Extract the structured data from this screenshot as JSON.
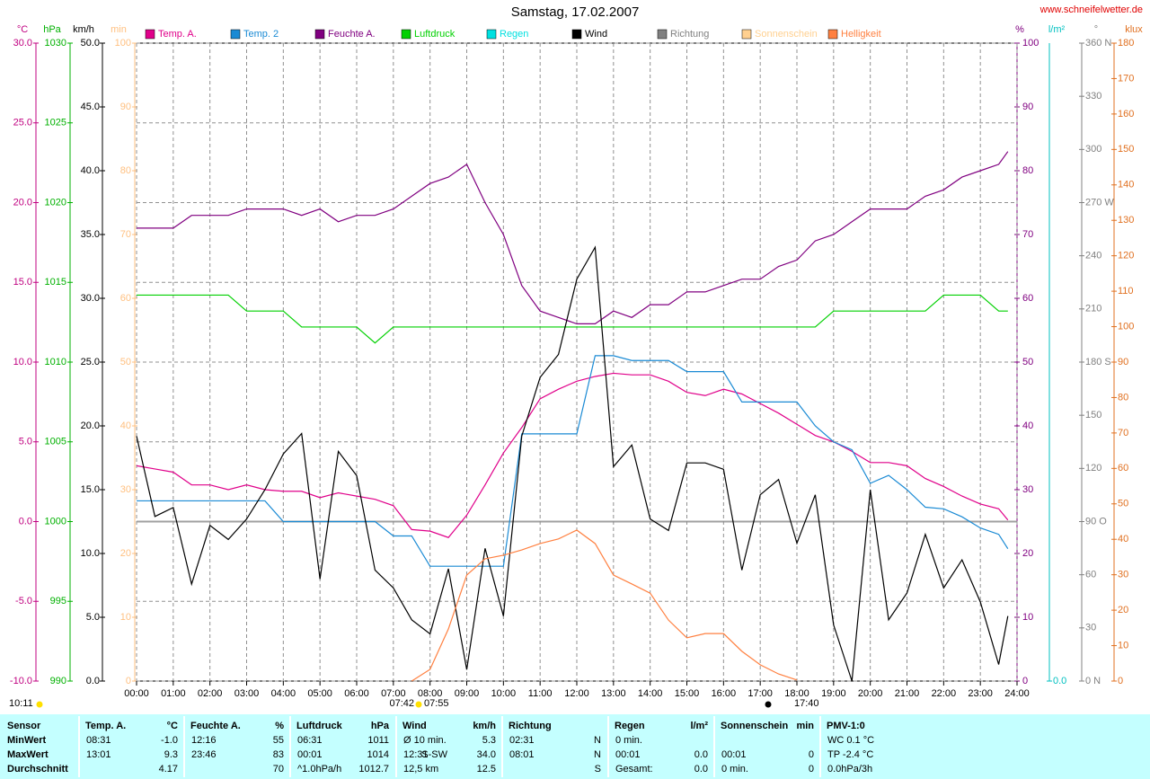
{
  "header": {
    "title": "Samstag, 17.02.2007",
    "site": "www.schneifelwetter.de",
    "time": "10:11",
    "sunrise": [
      "07:42",
      "07:55"
    ],
    "sunset": "17:40"
  },
  "chart_data": {
    "type": "line",
    "xlim": [
      0,
      24
    ],
    "xticks": [
      {
        "value": 0,
        "label": "00:00"
      },
      {
        "value": 1,
        "label": "01:00"
      },
      {
        "value": 2,
        "label": "02:00"
      },
      {
        "value": 3,
        "label": "03:00"
      },
      {
        "value": 4,
        "label": "04:00"
      },
      {
        "value": 5,
        "label": "05:00"
      },
      {
        "value": 6,
        "label": "06:00"
      },
      {
        "value": 7,
        "label": "07:00"
      },
      {
        "value": 8,
        "label": "08:00"
      },
      {
        "value": 9,
        "label": "09:00"
      },
      {
        "value": 10,
        "label": "10:00"
      },
      {
        "value": 11,
        "label": "11:00"
      },
      {
        "value": 12,
        "label": "12:00"
      },
      {
        "value": 13,
        "label": "13:00"
      },
      {
        "value": 14,
        "label": "14:00"
      },
      {
        "value": 15,
        "label": "15:00"
      },
      {
        "value": 16,
        "label": "16:00"
      },
      {
        "value": 17,
        "label": "17:00"
      },
      {
        "value": 18,
        "label": "18:00"
      },
      {
        "value": 19,
        "label": "19:00"
      },
      {
        "value": 20,
        "label": "20:00"
      },
      {
        "value": 21,
        "label": "21:00"
      },
      {
        "value": 22,
        "label": "22:00"
      },
      {
        "value": 23,
        "label": "23:00"
      },
      {
        "value": 24,
        "label": "24:00"
      }
    ],
    "grid": true,
    "axes": [
      {
        "title": "°C",
        "color": "#c00080",
        "lim": [
          -10,
          30
        ],
        "ticks": [
          {
            "value": -10,
            "label": "-10.0"
          },
          {
            "value": -5,
            "label": "-5.0"
          },
          {
            "value": 0,
            "label": "0.0"
          },
          {
            "value": 5,
            "label": "5.0"
          },
          {
            "value": 10,
            "label": "10.0"
          },
          {
            "value": 15,
            "label": "15.0"
          },
          {
            "value": 20,
            "label": "20.0"
          },
          {
            "value": 25,
            "label": "25.0"
          },
          {
            "value": 30,
            "label": "30.0"
          }
        ]
      },
      {
        "title": "hPa",
        "color": "#00b000",
        "lim": [
          990,
          1030
        ],
        "ticks": [
          990,
          995,
          1000,
          1005,
          1010,
          1015,
          1020,
          1025,
          1030
        ]
      },
      {
        "title": "km/h",
        "color": "#000000",
        "lim": [
          0,
          50
        ],
        "ticks": [
          {
            "value": 0,
            "label": "0.0"
          },
          {
            "value": 5,
            "label": "5.0"
          },
          {
            "value": 10,
            "label": "10.0"
          },
          {
            "value": 15,
            "label": "15.0"
          },
          {
            "value": 20,
            "label": "20.0"
          },
          {
            "value": 25,
            "label": "25.0"
          },
          {
            "value": 30,
            "label": "30.0"
          },
          {
            "value": 35,
            "label": "35.0"
          },
          {
            "value": 40,
            "label": "40.0"
          },
          {
            "value": 45,
            "label": "45.0"
          },
          {
            "value": 50,
            "label": "50.0"
          }
        ]
      },
      {
        "title": "min",
        "color": "#ffc080",
        "lim": [
          0,
          100
        ],
        "ticks": [
          0,
          10,
          20,
          30,
          40,
          50,
          60,
          70,
          80,
          90,
          100
        ]
      },
      {
        "title": "%",
        "color": "#800080",
        "lim": [
          0,
          100
        ],
        "ticks": [
          0,
          10,
          20,
          30,
          40,
          50,
          60,
          70,
          80,
          90,
          100
        ]
      },
      {
        "title": "l/m²",
        "color": "#00c0c0",
        "lim": [
          0,
          10
        ],
        "ticks": [
          {
            "value": 0,
            "label": "0.0"
          }
        ]
      },
      {
        "title": "°",
        "color": "#808080",
        "lim": [
          0,
          360
        ],
        "ticks": [
          {
            "value": 0,
            "label": "0 N"
          },
          30,
          60,
          {
            "value": 90,
            "label": "90 O"
          },
          120,
          150,
          {
            "value": 180,
            "label": "180 S"
          },
          210,
          240,
          {
            "value": 270,
            "label": "270 W"
          },
          300,
          330,
          {
            "value": 360,
            "label": "360 N"
          }
        ]
      },
      {
        "title": "klux",
        "color": "#e07020",
        "lim": [
          0,
          180
        ],
        "ticks": [
          0,
          10,
          20,
          30,
          40,
          50,
          60,
          70,
          80,
          90,
          100,
          110,
          120,
          130,
          140,
          150,
          160,
          170,
          180
        ]
      }
    ],
    "x": [
      0,
      0.5,
      1,
      1.5,
      2,
      2.5,
      3,
      3.5,
      4,
      4.5,
      5,
      5.5,
      6,
      6.5,
      7,
      7.5,
      8,
      8.5,
      9,
      9.5,
      10,
      10.5,
      11,
      11.5,
      12,
      12.5,
      13,
      13.5,
      14,
      14.5,
      15,
      15.5,
      16,
      16.5,
      17,
      17.5,
      18,
      18.5,
      19,
      19.5,
      20,
      20.5,
      21,
      21.5,
      22,
      22.5,
      23,
      23.5,
      23.75
    ],
    "series": [
      {
        "name": "Temp. A.",
        "color": "#e0008a",
        "axis": "°C",
        "values": [
          3.5,
          3.3,
          3.1,
          2.3,
          2.3,
          2.0,
          2.3,
          2.0,
          1.9,
          1.9,
          1.5,
          1.8,
          1.6,
          1.4,
          1.0,
          -0.5,
          -0.6,
          -1.0,
          0.4,
          2.3,
          4.3,
          5.9,
          7.7,
          8.3,
          8.8,
          9.1,
          9.3,
          9.2,
          9.2,
          8.8,
          8.1,
          7.9,
          8.3,
          8.0,
          7.4,
          6.8,
          6.1,
          5.4,
          5.0,
          4.4,
          3.7,
          3.7,
          3.5,
          2.7,
          2.2,
          1.6,
          1.1,
          0.8,
          0.1
        ]
      },
      {
        "name": "Temp. 2",
        "color": "#1a8ad4",
        "axis": "°C",
        "values": [
          1.3,
          1.3,
          1.3,
          1.3,
          1.3,
          1.3,
          1.3,
          1.3,
          0.0,
          0.0,
          0.0,
          0.0,
          0.0,
          0.0,
          -0.9,
          -0.9,
          -2.8,
          -2.8,
          -2.8,
          -2.8,
          -2.8,
          5.5,
          5.5,
          5.5,
          5.5,
          10.4,
          10.4,
          10.1,
          10.1,
          10.1,
          9.4,
          9.4,
          9.4,
          7.5,
          7.5,
          7.5,
          7.5,
          6.0,
          5.0,
          4.5,
          2.4,
          2.9,
          2.0,
          0.9,
          0.8,
          0.3,
          -0.4,
          -0.8,
          -1.7
        ]
      },
      {
        "name": "Feuchte A.",
        "color": "#800080",
        "axis": "%",
        "values": [
          71,
          71,
          71,
          73,
          73,
          73,
          74,
          74,
          74,
          73,
          74,
          72,
          73,
          73,
          74,
          76,
          78,
          79,
          81,
          75,
          70,
          62,
          58,
          57,
          56,
          56,
          58,
          57,
          59,
          59,
          61,
          61,
          62,
          63,
          63,
          65,
          66,
          69,
          70,
          72,
          74,
          74,
          74,
          76,
          77,
          79,
          80,
          81,
          83
        ]
      },
      {
        "name": "Luftdruck",
        "color": "#00d000",
        "axis": "hPa",
        "values": [
          1014.2,
          1014.2,
          1014.2,
          1014.2,
          1014.2,
          1014.2,
          1013.2,
          1013.2,
          1013.2,
          1012.2,
          1012.2,
          1012.2,
          1012.2,
          1011.2,
          1012.2,
          1012.2,
          1012.2,
          1012.2,
          1012.2,
          1012.2,
          1012.2,
          1012.2,
          1012.2,
          1012.2,
          1012.2,
          1012.2,
          1012.2,
          1012.2,
          1012.2,
          1012.2,
          1012.2,
          1012.2,
          1012.2,
          1012.2,
          1012.2,
          1012.2,
          1012.2,
          1012.2,
          1013.2,
          1013.2,
          1013.2,
          1013.2,
          1013.2,
          1013.2,
          1014.2,
          1014.2,
          1014.2,
          1013.2,
          1013.2
        ]
      },
      {
        "name": "Regen",
        "color": "#00e0e0"
      },
      {
        "name": "Wind",
        "color": "#000000",
        "axis": "km/h",
        "values": [
          19.2,
          12.9,
          13.6,
          7.6,
          12.2,
          11.1,
          12.7,
          15.0,
          17.8,
          19.4,
          8.0,
          18.0,
          16.1,
          8.7,
          7.3,
          4.8,
          3.7,
          8.8,
          0.9,
          10.4,
          5.1,
          19.2,
          23.8,
          25.6,
          31.5,
          34.0,
          16.8,
          18.5,
          12.7,
          11.8,
          17.1,
          17.1,
          16.6,
          8.7,
          14.6,
          15.8,
          10.8,
          14.6,
          4.4,
          0,
          15.0,
          4.8,
          6.9,
          11.5,
          7.3,
          9.5,
          6.2,
          1.3,
          5.1
        ]
      },
      {
        "name": "Richtung",
        "color": "#808080"
      },
      {
        "name": "Sonnenschein",
        "color": "#ffd090"
      },
      {
        "name": "Helligkeit",
        "color": "#ff8040",
        "axis": "klux",
        "values": [
          null,
          null,
          null,
          null,
          null,
          null,
          null,
          null,
          null,
          null,
          null,
          null,
          null,
          null,
          null,
          0,
          3.3,
          14.7,
          29.9,
          34.5,
          35.5,
          37.0,
          38.8,
          40.1,
          42.6,
          38.8,
          29.9,
          27.4,
          24.8,
          17.2,
          12.2,
          13.4,
          13.4,
          8.4,
          4.6,
          2.0,
          0.3,
          null,
          null,
          null,
          null,
          null,
          null,
          null,
          null,
          null,
          null,
          null,
          null
        ]
      }
    ]
  },
  "table": {
    "row_labels": [
      "Sensor",
      "MinWert",
      "MaxWert",
      "Durchschnitt"
    ],
    "groups": [
      {
        "title": "Temp. A.",
        "unit": "°C",
        "rows": [
          [
            "08:31",
            null,
            "-1.0"
          ],
          [
            "13:01",
            null,
            "9.3"
          ],
          [
            null,
            null,
            "4.17"
          ]
        ]
      },
      {
        "title": "Feuchte A.",
        "unit": "%",
        "rows": [
          [
            "12:16",
            null,
            "55"
          ],
          [
            "23:46",
            null,
            "83"
          ],
          [
            null,
            null,
            "70"
          ]
        ]
      },
      {
        "title": "Luftdruck",
        "unit": "hPa",
        "rows": [
          [
            "06:31",
            null,
            "1011"
          ],
          [
            "00:01",
            null,
            "1014"
          ],
          [
            "^1.0hPa/h",
            null,
            "1012.7"
          ]
        ]
      },
      {
        "title": "Wind",
        "unit": "km/h",
        "rows": [
          [
            "Ø 10 min.",
            null,
            "5.3"
          ],
          [
            "12:31",
            "S-SW",
            "34.0"
          ],
          [
            "12,5 km",
            null,
            "12.5"
          ]
        ]
      },
      {
        "title": "Richtung",
        "rows": [
          [
            "02:31",
            null,
            "N"
          ],
          [
            "08:01",
            null,
            "N"
          ],
          [
            null,
            null,
            "S"
          ]
        ]
      },
      {
        "title": "Regen",
        "unit": "l/m²",
        "rows": [
          [
            "0 min.",
            null,
            null
          ],
          [
            "00:01",
            null,
            "0.0"
          ],
          [
            "Gesamt:",
            null,
            "0.0"
          ]
        ]
      },
      {
        "title": "Sonnenschein",
        "unit": "min",
        "rows": [
          [
            null,
            null,
            null
          ],
          [
            "00:01",
            null,
            "0"
          ],
          [
            "0 min.",
            null,
            "0"
          ]
        ]
      },
      {
        "title": "PMV-1:0",
        "rows": [
          [
            "WC 0.1 °C",
            null,
            null
          ],
          [
            "TP -2.4 °C",
            null,
            null
          ],
          [
            "0.0hPa/3h",
            null,
            null
          ]
        ]
      }
    ]
  }
}
